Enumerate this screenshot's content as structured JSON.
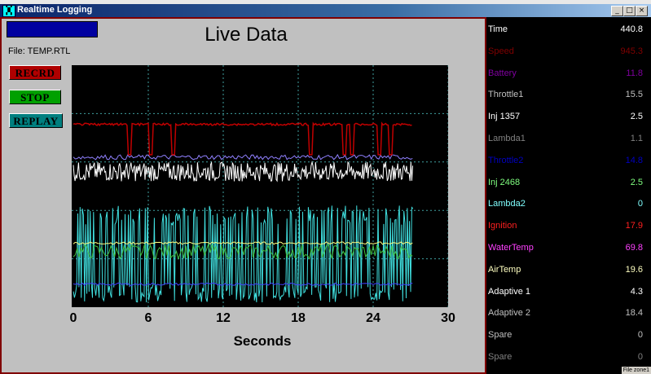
{
  "window": {
    "title": "Realtime Logging",
    "app_icon": "graph-app-icon",
    "min_label": "_",
    "max_label": "□",
    "close_label": "×"
  },
  "main": {
    "title": "Live Data",
    "file_label": "File: TEMP.RTL",
    "buttons": {
      "record": "RECRD",
      "stop": "STOP",
      "replay": "REPLAY"
    }
  },
  "chart_data": {
    "type": "line",
    "xlabel": "Seconds",
    "xlim": [
      0,
      30
    ],
    "xticks": [
      "0",
      "6",
      "12",
      "18",
      "24",
      "30"
    ],
    "grid": true,
    "background": "#000000",
    "series": [
      {
        "color": "#c00000",
        "band": [
          0.73,
          0.76
        ],
        "dips": [
          4.5,
          6.2,
          8.0,
          19.0,
          21.7,
          22.3,
          24.5,
          25.4
        ]
      },
      {
        "color": "#9080ff",
        "band": [
          0.61,
          0.63
        ]
      },
      {
        "color": "#ffffff",
        "band": [
          0.52,
          0.6
        ]
      },
      {
        "color": "#ffff80",
        "band": [
          0.26,
          0.27
        ]
      },
      {
        "color": "#40c040",
        "band": [
          0.2,
          0.26
        ]
      },
      {
        "color": "#40e0e0",
        "band": [
          0.02,
          0.42
        ]
      },
      {
        "color": "#4040ff",
        "band": [
          0.09,
          0.1
        ]
      }
    ]
  },
  "readout": {
    "items": [
      {
        "label": "Time",
        "value": "440.8",
        "color": "#ffffff"
      },
      {
        "label": "Speed",
        "value": "945.3",
        "color": "#800000"
      },
      {
        "label": "Battery",
        "value": "11.8",
        "color": "#8000a0"
      },
      {
        "label": "Throttle1",
        "value": "15.5",
        "color": "#c0c0c0"
      },
      {
        "label": "Inj 1357",
        "value": "2.5",
        "color": "#ffffff"
      },
      {
        "label": "Lambda1",
        "value": "1.1",
        "color": "#808080"
      },
      {
        "label": "Throttle2",
        "value": "14.8",
        "color": "#0000c0"
      },
      {
        "label": "Inj 2468",
        "value": "2.5",
        "color": "#80ff80"
      },
      {
        "label": "Lambda2",
        "value": "0",
        "color": "#80ffff"
      },
      {
        "label": "Ignition",
        "value": "17.9",
        "color": "#ff2020"
      },
      {
        "label": "WaterTemp",
        "value": "69.8",
        "color": "#ff40ff"
      },
      {
        "label": "AirTemp",
        "value": "19.6",
        "color": "#ffffc0"
      },
      {
        "label": "Adaptive 1",
        "value": "4.3",
        "color": "#ffffff"
      },
      {
        "label": "Adaptive 2",
        "value": "18.4",
        "color": "#c0c0c0"
      },
      {
        "label": "Spare",
        "value": "0",
        "color": "#c0c0c0"
      },
      {
        "label": "Spare",
        "value": "0",
        "color": "#808080"
      }
    ],
    "status_tag": "File zone1"
  }
}
